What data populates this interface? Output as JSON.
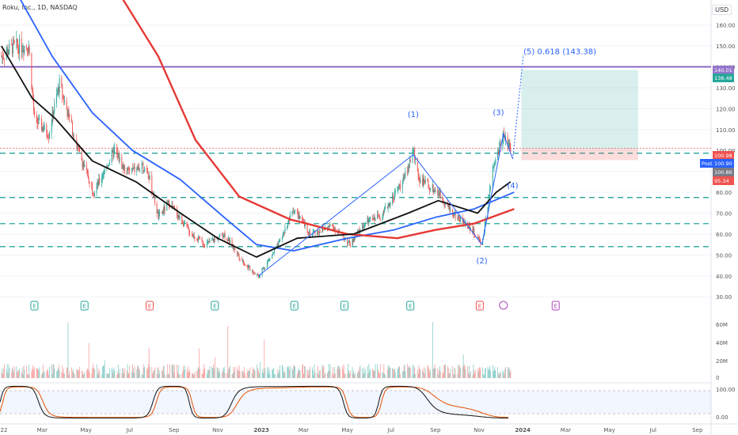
{
  "header": {
    "symbol_title": "Roku, Inc., 1D, NASDAQ",
    "currency": "USD"
  },
  "colors": {
    "up": "#26a69a",
    "down": "#ef5350",
    "sma_black": "#111111",
    "sma_blue": "#2962ff",
    "sma_red": "#e53935",
    "wave": "#2962ff",
    "dashed": "#26a69a",
    "purple": "#7e57c2",
    "pos_green": "#26a69a",
    "stoch": "#e65100"
  },
  "chart_data": {
    "type": "candlestick",
    "y_axis_ticks": [
      "160.00",
      "150.00",
      "140.00",
      "130.00",
      "120.00",
      "110.00",
      "100.00",
      "90.00",
      "80.00",
      "70.00",
      "60.00",
      "50.00",
      "40.00",
      "30.00"
    ],
    "x_axis_ticks": [
      "22",
      "Mar",
      "May",
      "Jul",
      "Sep",
      "Nov",
      "2023",
      "Mar",
      "May",
      "Jul",
      "Sep",
      "Nov",
      "2024",
      "Mar",
      "May",
      "Jul",
      "Sep"
    ],
    "price_labels": [
      {
        "text": "140.01",
        "color": "#9575cd"
      },
      {
        "text": "138.48",
        "color": "#26a69a"
      },
      {
        "text": "100.98",
        "color": "#ef5350"
      },
      {
        "text": "Post",
        "color": "#2962ff"
      },
      {
        "text": "100.90",
        "color": "#2962ff"
      },
      {
        "text": "100.86",
        "color": "#787b86"
      },
      {
        "text": "95.34",
        "color": "#ef5350"
      }
    ],
    "wave_labels": [
      "(1)",
      "(2)",
      "(3)",
      "(4)",
      "(5) 0.618 (143.38)"
    ],
    "horizontal_levels": [
      140.01,
      98.7,
      77.5,
      65.0,
      54.0
    ],
    "position_tool": {
      "target": 138.48,
      "entry": 100.9,
      "stop": 95.34
    },
    "earnings_markers": [
      "E",
      "E",
      "E",
      "E",
      "E",
      "E",
      "E",
      "E",
      "E"
    ],
    "volume_axis": [
      "60M",
      "40M",
      "20M",
      "0"
    ],
    "oscillator_axis": [
      "100.00",
      "0.00"
    ],
    "price_series": [
      [
        "2022-01-03",
        145
      ],
      [
        "2022-01-20",
        150
      ],
      [
        "2022-02-10",
        150
      ],
      [
        "2022-02-18",
        115
      ],
      [
        "2022-03-10",
        108
      ],
      [
        "2022-03-25",
        132
      ],
      [
        "2022-04-20",
        100
      ],
      [
        "2022-05-12",
        80
      ],
      [
        "2022-06-10",
        100
      ],
      [
        "2022-06-25",
        90
      ],
      [
        "2022-07-25",
        92
      ],
      [
        "2022-08-10",
        68
      ],
      [
        "2022-08-25",
        75
      ],
      [
        "2022-09-25",
        60
      ],
      [
        "2022-10-15",
        55
      ],
      [
        "2022-11-10",
        60
      ],
      [
        "2022-12-10",
        45
      ],
      [
        "2022-12-28",
        40
      ],
      [
        "2023-01-25",
        55
      ],
      [
        "2023-02-15",
        72
      ],
      [
        "2023-03-10",
        60
      ],
      [
        "2023-04-10",
        64
      ],
      [
        "2023-05-05",
        55
      ],
      [
        "2023-05-25",
        65
      ],
      [
        "2023-06-20",
        70
      ],
      [
        "2023-07-20",
        87
      ],
      [
        "2023-08-01",
        100
      ],
      [
        "2023-08-10",
        86
      ],
      [
        "2023-09-05",
        80
      ],
      [
        "2023-09-25",
        70
      ],
      [
        "2023-10-20",
        63
      ],
      [
        "2023-11-05",
        55
      ],
      [
        "2023-11-20",
        90
      ],
      [
        "2023-12-05",
        108
      ],
      [
        "2023-12-15",
        101
      ]
    ],
    "sma_black": [
      [
        "2022-01-03",
        150
      ],
      [
        "2022-02-15",
        125
      ],
      [
        "2022-03-20",
        115
      ],
      [
        "2022-05-10",
        95
      ],
      [
        "2022-07-10",
        85
      ],
      [
        "2022-09-10",
        70
      ],
      [
        "2022-11-01",
        58
      ],
      [
        "2022-12-25",
        49
      ],
      [
        "2023-02-20",
        58
      ],
      [
        "2023-05-10",
        60
      ],
      [
        "2023-07-25",
        70
      ],
      [
        "2023-09-05",
        76
      ],
      [
        "2023-10-30",
        70
      ],
      [
        "2023-11-25",
        80
      ],
      [
        "2023-12-15",
        85
      ]
    ],
    "sma_blue": [
      [
        "2022-01-25",
        175
      ],
      [
        "2022-03-15",
        145
      ],
      [
        "2022-05-10",
        118
      ],
      [
        "2022-07-05",
        100
      ],
      [
        "2022-09-10",
        86
      ],
      [
        "2022-11-10",
        68
      ],
      [
        "2022-12-25",
        55
      ],
      [
        "2023-02-15",
        52
      ],
      [
        "2023-05-01",
        58
      ],
      [
        "2023-07-05",
        62
      ],
      [
        "2023-09-01",
        68
      ],
      [
        "2023-10-25",
        72
      ],
      [
        "2023-12-20",
        80
      ]
    ],
    "sma_red": [
      [
        "2022-06-15",
        176
      ],
      [
        "2022-08-10",
        145
      ],
      [
        "2022-10-01",
        105
      ],
      [
        "2022-12-01",
        78
      ],
      [
        "2023-02-10",
        67
      ],
      [
        "2023-05-01",
        60
      ],
      [
        "2023-07-10",
        58
      ],
      [
        "2023-09-01",
        62
      ],
      [
        "2023-10-25",
        65
      ],
      [
        "2023-12-20",
        72
      ]
    ]
  }
}
